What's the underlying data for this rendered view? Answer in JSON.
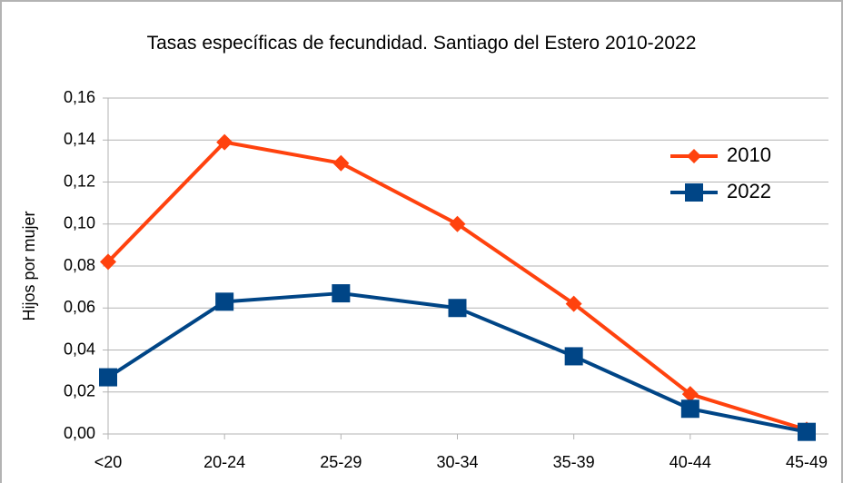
{
  "chart_data": {
    "type": "line",
    "title": "Tasas específicas de fecundidad. Santiago del Estero 2010-2022",
    "y_label": "Hijos por mujer",
    "categories": [
      "<20",
      "20-24",
      "25-29",
      "30-34",
      "35-39",
      "40-44",
      "45-49"
    ],
    "series": [
      {
        "name": "2010",
        "color": "#ff420e",
        "marker": "diamond",
        "values": [
          0.082,
          0.139,
          0.129,
          0.1,
          0.062,
          0.019,
          0.002
        ]
      },
      {
        "name": "2022",
        "color": "#004586",
        "marker": "square",
        "values": [
          0.027,
          0.063,
          0.067,
          0.06,
          0.037,
          0.012,
          0.001
        ]
      }
    ],
    "ylim": [
      0,
      0.16
    ],
    "yticks": [
      {
        "value": 0,
        "label": "0,00"
      },
      {
        "value": 0.02,
        "label": "0,02"
      },
      {
        "value": 0.04,
        "label": "0,04"
      },
      {
        "value": 0.06,
        "label": "0,06"
      },
      {
        "value": 0.08,
        "label": "0,08"
      },
      {
        "value": 0.1,
        "label": "0,10"
      },
      {
        "value": 0.12,
        "label": "0,12"
      },
      {
        "value": 0.14,
        "label": "0,14"
      },
      {
        "value": 0.16,
        "label": "0,16"
      }
    ],
    "grid": true,
    "legend": "upper right"
  }
}
